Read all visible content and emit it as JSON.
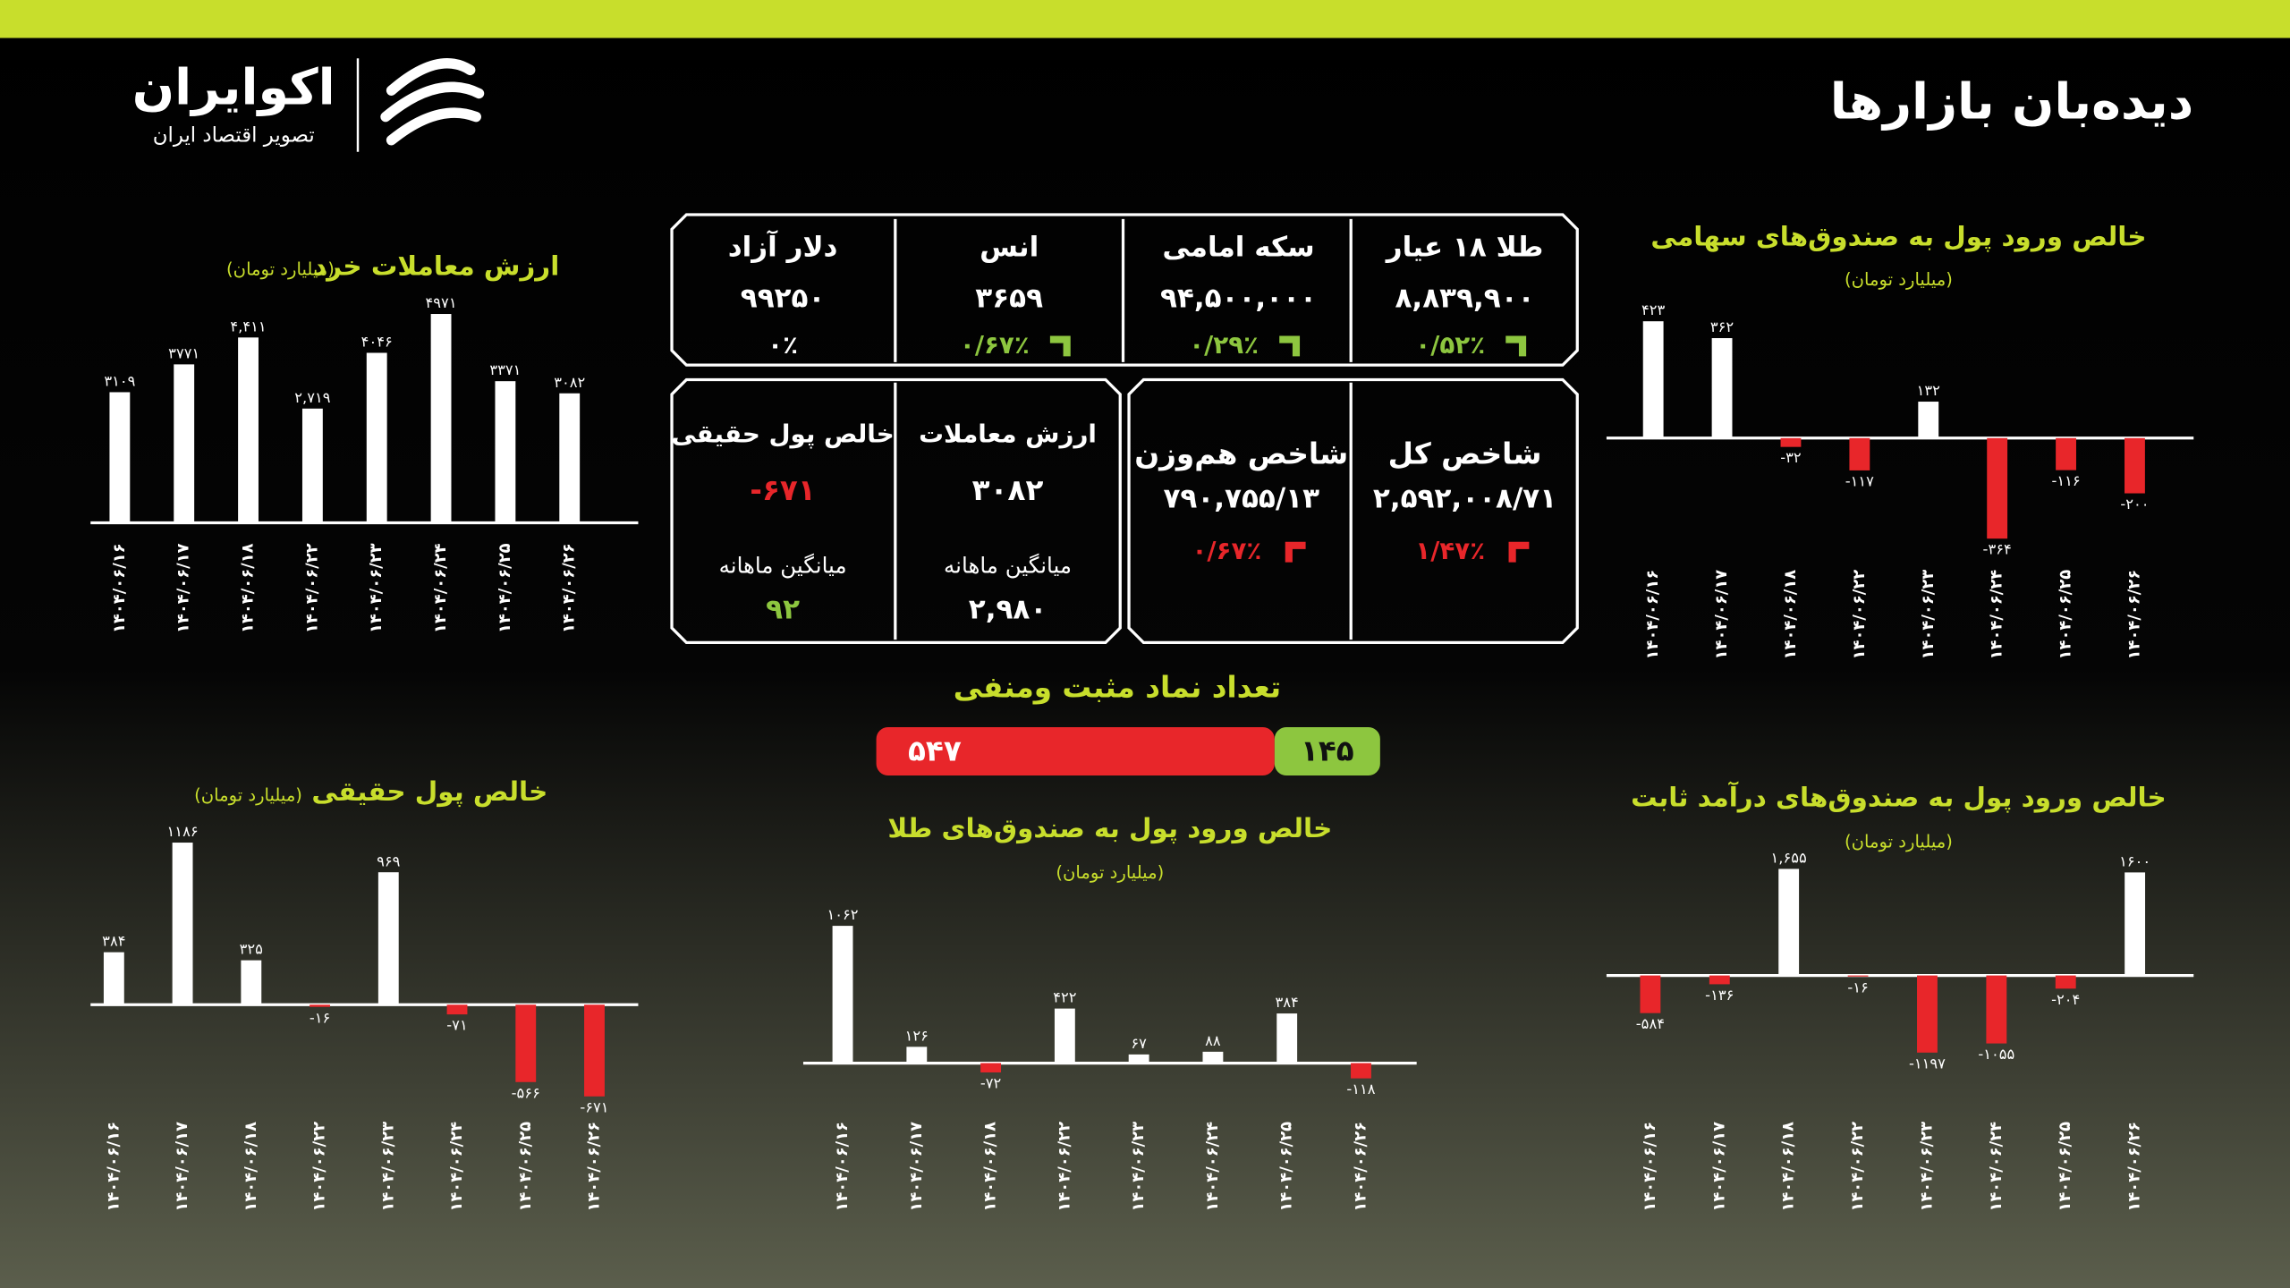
{
  "header": {
    "title": "دیده‌بان بازارها",
    "logo": "اکوایران",
    "tagline": "تصویر اقتصاد ایران"
  },
  "prices": [
    {
      "name": "طلا ۱۸ عیار",
      "value": "۸,۸۳۹,۹۰۰",
      "change": "۰/۵۲٪",
      "trend": "up"
    },
    {
      "name": "سکه امامی",
      "value": "۹۴,۵۰۰,۰۰۰",
      "change": "۰/۲۹٪",
      "trend": "up"
    },
    {
      "name": "انس",
      "value": "۳۶۵۹",
      "change": "۰/۶۷٪",
      "trend": "up"
    },
    {
      "name": "دلار آزاد",
      "value": "۹۹۲۵۰",
      "change": "۰٪",
      "trend": "flat"
    }
  ],
  "indices": [
    {
      "name": "شاخص کل",
      "value": "۲,۵۹۲,۰۰۸/۷۱",
      "change": "۱/۴۷٪",
      "trend": "down"
    },
    {
      "name": "شاخص هم‌وزن",
      "value": "۷۹۰,۷۵۵/۱۳",
      "change": "۰/۶۷٪",
      "trend": "down"
    }
  ],
  "market": [
    {
      "name": "ارزش معاملات",
      "value": "۳۰۸۲",
      "value_color": "#ffffff",
      "avg_label": "میانگین ماهانه",
      "avg": "۲,۹۸۰",
      "avg_color": "#ffffff"
    },
    {
      "name": "خالص پول حقیقی",
      "value": "-۶۷۱",
      "value_color": "#e8262a",
      "avg_label": "میانگین ماهانه",
      "avg": "۹۲",
      "avg_color": "#8dc63f"
    }
  ],
  "chart_data": [
    {
      "type": "bar",
      "title": "ارزش معاملات خرد",
      "subtitle": "(میلیارد تومان)",
      "categories": [
        "۱۴۰۴/۰۶/۱۶",
        "۱۴۰۴/۰۶/۱۷",
        "۱۴۰۴/۰۶/۱۸",
        "۱۴۰۴/۰۶/۲۲",
        "۱۴۰۴/۰۶/۲۳",
        "۱۴۰۴/۰۶/۲۴",
        "۱۴۰۴/۰۶/۲۵",
        "۱۴۰۴/۰۶/۲۶"
      ],
      "values": [
        3109,
        3771,
        4411,
        2719,
        4046,
        4971,
        3371,
        3082
      ],
      "value_labels": [
        "۳۱۰۹",
        "۳۷۷۱",
        "۴,۴۱۱",
        "۲,۷۱۹",
        "۴۰۴۶",
        "۴۹۷۱",
        "۳۳۷۱",
        "۳۰۸۲"
      ],
      "color": "#ffffff",
      "negative_color": "#e8262a"
    },
    {
      "type": "bar",
      "title": "خالص ورود پول به صندوق‌های سهامی",
      "subtitle": "(میلیارد تومان)",
      "categories": [
        "۱۴۰۴/۰۶/۱۶",
        "۱۴۰۴/۰۶/۱۷",
        "۱۴۰۴/۰۶/۱۸",
        "۱۴۰۴/۰۶/۲۲",
        "۱۴۰۴/۰۶/۲۳",
        "۱۴۰۴/۰۶/۲۴",
        "۱۴۰۴/۰۶/۲۵",
        "۱۴۰۴/۰۶/۲۶"
      ],
      "values": [
        423,
        362,
        -32,
        -117,
        132,
        -364,
        -116,
        -200
      ],
      "value_labels": [
        "۴۲۳",
        "۳۶۲",
        "-۳۲",
        "-۱۱۷",
        "۱۳۲",
        "-۳۶۴",
        "-۱۱۶",
        "-۲۰۰"
      ],
      "color": "#ffffff",
      "negative_color": "#e8262a"
    },
    {
      "type": "bar",
      "title": "خالص پول حقیقی",
      "subtitle": "(میلیارد تومان)",
      "categories": [
        "۱۴۰۴/۰۶/۱۶",
        "۱۴۰۴/۰۶/۱۷",
        "۱۴۰۴/۰۶/۱۸",
        "۱۴۰۴/۰۶/۲۲",
        "۱۴۰۴/۰۶/۲۳",
        "۱۴۰۴/۰۶/۲۴",
        "۱۴۰۴/۰۶/۲۵",
        "۱۴۰۴/۰۶/۲۶"
      ],
      "values": [
        384,
        1186,
        325,
        -16,
        969,
        -71,
        -566,
        -671
      ],
      "value_labels": [
        "۳۸۴",
        "۱۱۸۶",
        "۳۲۵",
        "-۱۶",
        "۹۶۹",
        "-۷۱",
        "-۵۶۶",
        "-۶۷۱"
      ],
      "color": "#ffffff",
      "negative_color": "#e8262a"
    },
    {
      "type": "bar",
      "title": "خالص ورود پول به صندوق‌های طلا",
      "subtitle": "(میلیارد تومان)",
      "categories": [
        "۱۴۰۴/۰۶/۱۶",
        "۱۴۰۴/۰۶/۱۷",
        "۱۴۰۴/۰۶/۱۸",
        "۱۴۰۴/۰۶/۲۲",
        "۱۴۰۴/۰۶/۲۳",
        "۱۴۰۴/۰۶/۲۴",
        "۱۴۰۴/۰۶/۲۵",
        "۱۴۰۴/۰۶/۲۶"
      ],
      "values": [
        1062,
        126,
        -72,
        422,
        67,
        88,
        384,
        -118
      ],
      "value_labels": [
        "۱۰۶۲",
        "۱۲۶",
        "-۷۲",
        "۴۲۲",
        "۶۷",
        "۸۸",
        "۳۸۴",
        "-۱۱۸"
      ],
      "color": "#ffffff",
      "negative_color": "#e8262a"
    },
    {
      "type": "bar",
      "title": "خالص ورود پول به صندوق‌های درآمد ثابت",
      "subtitle": "(میلیارد تومان)",
      "categories": [
        "۱۴۰۴/۰۶/۱۶",
        "۱۴۰۴/۰۶/۱۷",
        "۱۴۰۴/۰۶/۱۸",
        "۱۴۰۴/۰۶/۲۲",
        "۱۴۰۴/۰۶/۲۳",
        "۱۴۰۴/۰۶/۲۴",
        "۱۴۰۴/۰۶/۲۵",
        "۱۴۰۴/۰۶/۲۶"
      ],
      "values": [
        -584,
        -136,
        1655,
        -16,
        -1197,
        -1055,
        -204,
        1600
      ],
      "value_labels": [
        "-۵۸۴",
        "-۱۳۶",
        "۱,۶۵۵",
        "-۱۶",
        "-۱۱۹۷",
        "-۱۰۵۵",
        "-۲۰۴",
        "۱۶۰۰"
      ],
      "color": "#ffffff",
      "negative_color": "#e8262a"
    },
    {
      "type": "split-bar",
      "title": "تعداد نماد مثبت ومنفی",
      "values": [
        145,
        547
      ],
      "value_labels": [
        "۱۴۵",
        "۵۴۷"
      ],
      "colors": [
        "#8dc63f",
        "#e8262a"
      ]
    }
  ]
}
